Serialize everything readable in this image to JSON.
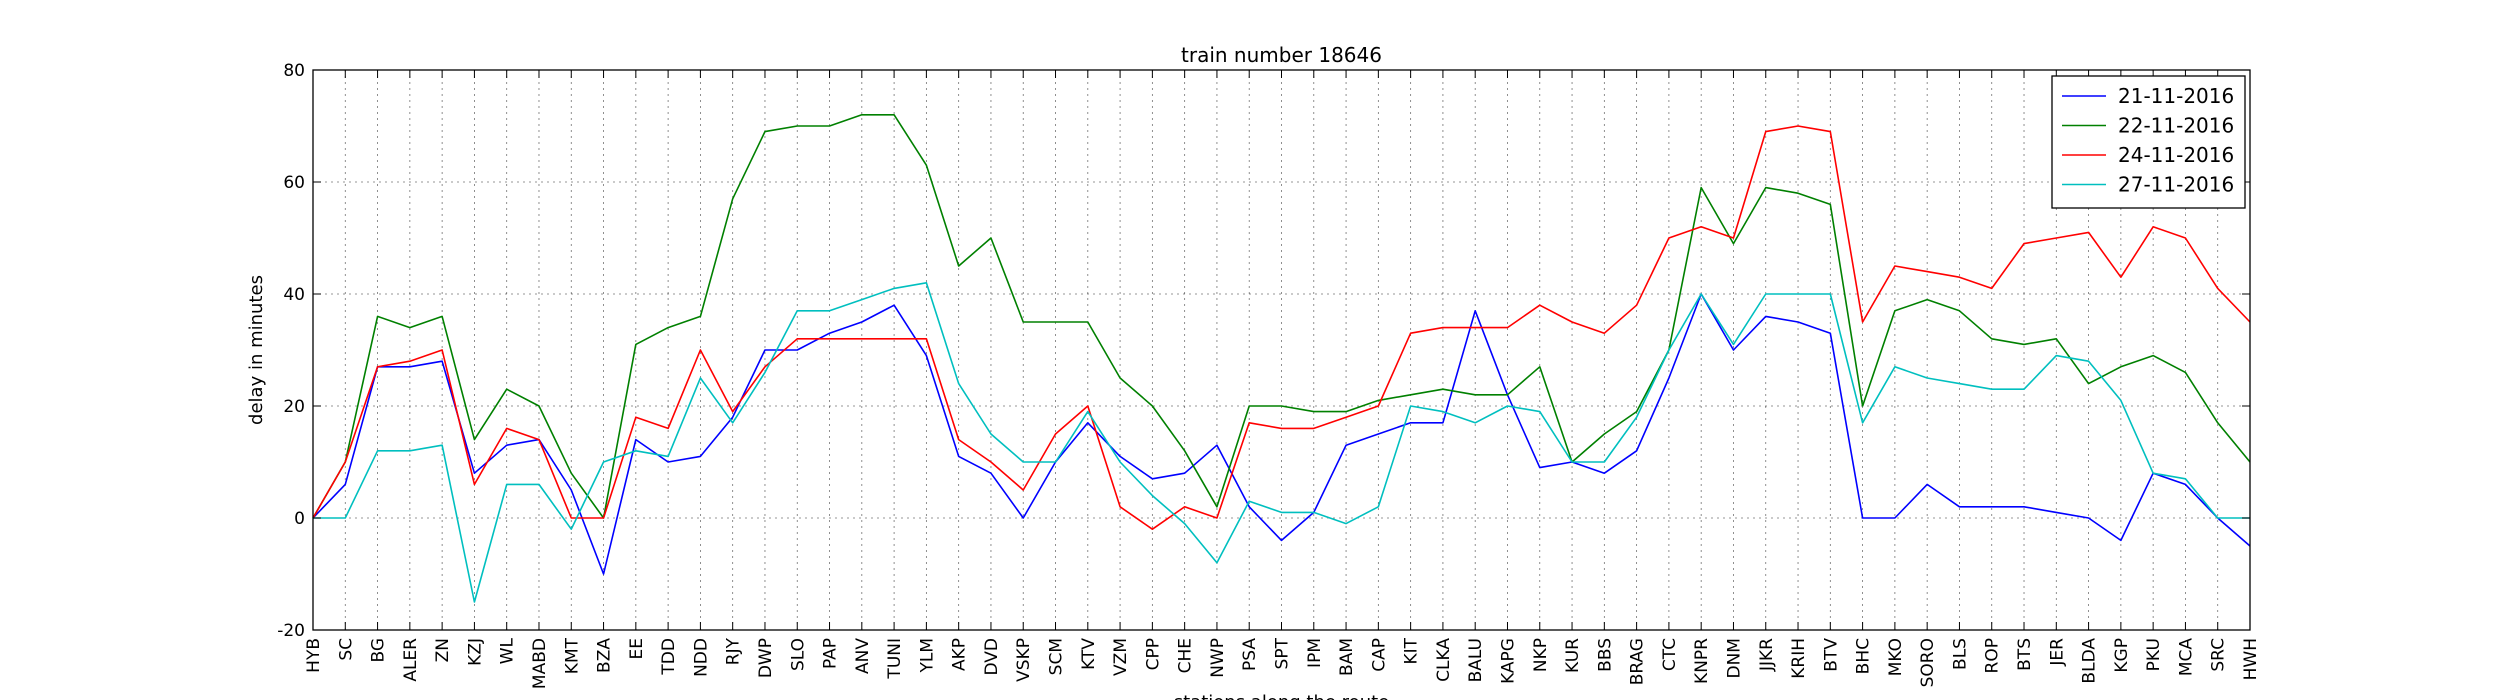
{
  "chart_data": {
    "type": "line",
    "title": "train number 18646",
    "xlabel": "stations along the route",
    "ylabel": "delay in minutes",
    "ylim": [
      -20,
      80
    ],
    "yticks": [
      -20,
      0,
      20,
      40,
      60,
      80
    ],
    "grid": true,
    "legend_position": "top-right",
    "categories": [
      "HYB",
      "SC",
      "BG",
      "ALER",
      "ZN",
      "KZJ",
      "WL",
      "MABD",
      "KMT",
      "BZA",
      "EE",
      "TDD",
      "NDD",
      "RJY",
      "DWP",
      "SLO",
      "PAP",
      "ANV",
      "TUNI",
      "YLM",
      "AKP",
      "DVD",
      "VSKP",
      "SCM",
      "KTV",
      "VZM",
      "CPP",
      "CHE",
      "NWP",
      "PSA",
      "SPT",
      "IPM",
      "BAM",
      "CAP",
      "KIT",
      "CLKA",
      "BALU",
      "KAPG",
      "NKP",
      "KUR",
      "BBS",
      "BRAG",
      "CTC",
      "KNPR",
      "DNM",
      "JJKR",
      "KRIH",
      "BTV",
      "BHC",
      "MKO",
      "SORO",
      "BLS",
      "ROP",
      "BTS",
      "JER",
      "BLDA",
      "KGP",
      "PKU",
      "MCA",
      "SRC",
      "HWH"
    ],
    "series": [
      {
        "name": "21-11-2016",
        "color": "#0000ff",
        "values": [
          0,
          6,
          27,
          27,
          28,
          8,
          13,
          14,
          5,
          -10,
          14,
          10,
          11,
          18,
          30,
          30,
          33,
          35,
          38,
          29,
          11,
          8,
          0,
          10,
          17,
          11,
          7,
          8,
          13,
          2,
          -4,
          1,
          13,
          15,
          17,
          17,
          37,
          22,
          9,
          10,
          8,
          12,
          25,
          40,
          30,
          36,
          35,
          33,
          0,
          0,
          6,
          2,
          2,
          2,
          1,
          0,
          -4,
          8,
          6,
          0,
          -5
        ]
      },
      {
        "name": "22-11-2016",
        "color": "#008000",
        "values": [
          0,
          10,
          36,
          34,
          36,
          14,
          23,
          20,
          8,
          0,
          31,
          34,
          36,
          57,
          69,
          70,
          70,
          72,
          72,
          63,
          45,
          50,
          35,
          35,
          35,
          25,
          20,
          12,
          2,
          20,
          20,
          19,
          19,
          21,
          22,
          23,
          22,
          22,
          27,
          10,
          15,
          19,
          30,
          59,
          49,
          59,
          58,
          56,
          20,
          37,
          39,
          37,
          32,
          31,
          32,
          24,
          27,
          29,
          26,
          17,
          10
        ]
      },
      {
        "name": "24-11-2016",
        "color": "#ff0000",
        "values": [
          0,
          10,
          27,
          28,
          30,
          6,
          16,
          14,
          0,
          0,
          18,
          16,
          30,
          19,
          27,
          32,
          32,
          32,
          32,
          32,
          14,
          10,
          5,
          15,
          20,
          2,
          -2,
          2,
          0,
          17,
          16,
          16,
          18,
          20,
          33,
          34,
          34,
          34,
          38,
          35,
          33,
          38,
          50,
          52,
          50,
          69,
          70,
          69,
          35,
          45,
          44,
          43,
          41,
          49,
          50,
          51,
          43,
          52,
          50,
          41,
          35
        ]
      },
      {
        "name": "27-11-2016",
        "color": "#00bfbf",
        "values": [
          0,
          0,
          12,
          12,
          13,
          -15,
          6,
          6,
          -2,
          10,
          12,
          11,
          25,
          17,
          26,
          37,
          37,
          39,
          41,
          42,
          24,
          15,
          10,
          10,
          19,
          10,
          4,
          -1,
          -8,
          3,
          1,
          1,
          -1,
          2,
          20,
          19,
          17,
          20,
          19,
          10,
          10,
          18,
          30,
          40,
          31,
          40,
          40,
          40,
          17,
          27,
          25,
          24,
          23,
          23,
          29,
          28,
          21,
          8,
          7,
          0,
          0
        ]
      }
    ]
  }
}
